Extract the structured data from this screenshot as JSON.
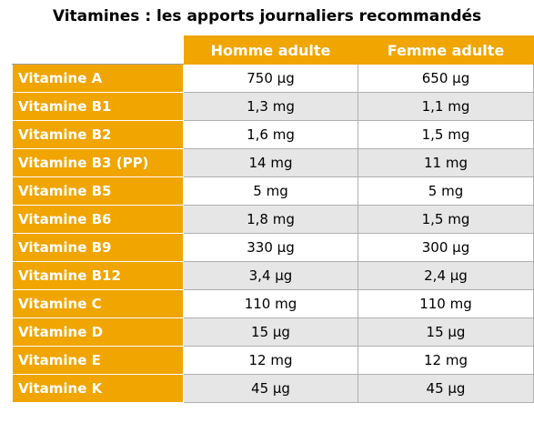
{
  "title": "Vitamines : les apports journaliers recommandés",
  "columns": [
    "Homme adulte",
    "Femme adulte"
  ],
  "rows": [
    {
      "label": "Vitamine A",
      "homme": "750 µg",
      "femme": "650 µg"
    },
    {
      "label": "Vitamine B1",
      "homme": "1,3 mg",
      "femme": "1,1 mg"
    },
    {
      "label": "Vitamine B2",
      "homme": "1,6 mg",
      "femme": "1,5 mg"
    },
    {
      "label": "Vitamine B3 (PP)",
      "homme": "14 mg",
      "femme": "11 mg"
    },
    {
      "label": "Vitamine B5",
      "homme": "5 mg",
      "femme": "5 mg"
    },
    {
      "label": "Vitamine B6",
      "homme": "1,8 mg",
      "femme": "1,5 mg"
    },
    {
      "label": "Vitamine B9",
      "homme": "330 µg",
      "femme": "300 µg"
    },
    {
      "label": "Vitamine B12",
      "homme": "3,4 µg",
      "femme": "2,4 µg"
    },
    {
      "label": "Vitamine C",
      "homme": "110 mg",
      "femme": "110 mg"
    },
    {
      "label": "Vitamine D",
      "homme": "15 µg",
      "femme": "15 µg"
    },
    {
      "label": "Vitamine E",
      "homme": "12 mg",
      "femme": "12 mg"
    },
    {
      "label": "Vitamine K",
      "homme": "45 µg",
      "femme": "45 µg"
    }
  ],
  "colors": {
    "header_bg": "#f0a500",
    "header_text": "#ffffff",
    "alt_row": "#e6e6e6"
  }
}
